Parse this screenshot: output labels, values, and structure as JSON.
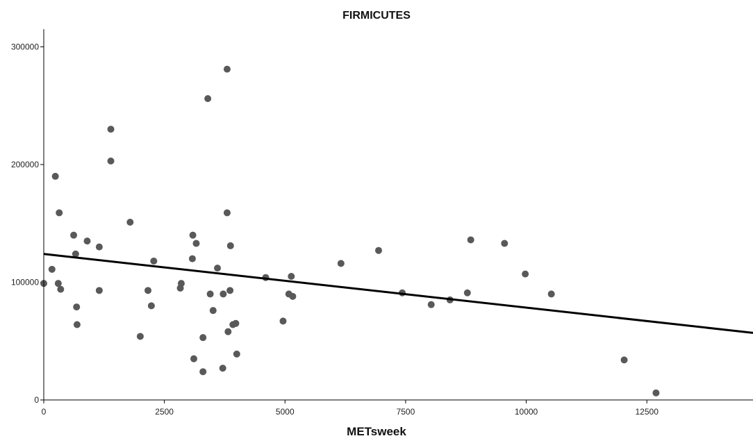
{
  "chart_data": {
    "type": "scatter",
    "title": "FIRMICUTES",
    "xlabel": "METsweek",
    "ylabel": "",
    "xlim": [
      0,
      14700
    ],
    "ylim": [
      0,
      315000
    ],
    "x_ticks": [
      0,
      2500,
      5000,
      7500,
      10000,
      12500
    ],
    "x_tick_labels": [
      "0",
      "2500",
      "5000",
      "7500",
      "10000",
      "12500"
    ],
    "y_ticks": [
      0,
      100000,
      200000,
      300000
    ],
    "y_tick_labels": [
      "0",
      "100000",
      "200000",
      "300000"
    ],
    "grid": false,
    "legend": "none",
    "colors": {
      "points": "#595959",
      "fit_line": "#000000",
      "axes": "#000000"
    },
    "fit_line": {
      "start": [
        0,
        124000
      ],
      "end": [
        14700,
        57000
      ]
    },
    "points": [
      {
        "x": 0,
        "y": 99000
      },
      {
        "x": 170,
        "y": 111000
      },
      {
        "x": 240,
        "y": 190000
      },
      {
        "x": 300,
        "y": 99000
      },
      {
        "x": 320,
        "y": 159000
      },
      {
        "x": 350,
        "y": 94000
      },
      {
        "x": 620,
        "y": 140000
      },
      {
        "x": 660,
        "y": 124000
      },
      {
        "x": 680,
        "y": 79000
      },
      {
        "x": 690,
        "y": 64000
      },
      {
        "x": 900,
        "y": 135000
      },
      {
        "x": 1150,
        "y": 93000
      },
      {
        "x": 1150,
        "y": 130000
      },
      {
        "x": 1390,
        "y": 230000
      },
      {
        "x": 1390,
        "y": 203000
      },
      {
        "x": 1790,
        "y": 151000
      },
      {
        "x": 2000,
        "y": 54000
      },
      {
        "x": 2160,
        "y": 93000
      },
      {
        "x": 2230,
        "y": 80000
      },
      {
        "x": 2280,
        "y": 118000
      },
      {
        "x": 2830,
        "y": 95000
      },
      {
        "x": 2850,
        "y": 99000
      },
      {
        "x": 3080,
        "y": 120000
      },
      {
        "x": 3090,
        "y": 140000
      },
      {
        "x": 3110,
        "y": 35000
      },
      {
        "x": 3160,
        "y": 133000
      },
      {
        "x": 3300,
        "y": 53000
      },
      {
        "x": 3300,
        "y": 24000
      },
      {
        "x": 3400,
        "y": 256000
      },
      {
        "x": 3450,
        "y": 90000
      },
      {
        "x": 3510,
        "y": 76000
      },
      {
        "x": 3600,
        "y": 112000
      },
      {
        "x": 3710,
        "y": 27000
      },
      {
        "x": 3720,
        "y": 90000
      },
      {
        "x": 3800,
        "y": 281000
      },
      {
        "x": 3800,
        "y": 159000
      },
      {
        "x": 3820,
        "y": 58000
      },
      {
        "x": 3860,
        "y": 93000
      },
      {
        "x": 3870,
        "y": 131000
      },
      {
        "x": 3920,
        "y": 64000
      },
      {
        "x": 3980,
        "y": 65000
      },
      {
        "x": 4000,
        "y": 39000
      },
      {
        "x": 4600,
        "y": 104000
      },
      {
        "x": 4960,
        "y": 67000
      },
      {
        "x": 5080,
        "y": 90000
      },
      {
        "x": 5130,
        "y": 105000
      },
      {
        "x": 5160,
        "y": 88000
      },
      {
        "x": 6160,
        "y": 116000
      },
      {
        "x": 6940,
        "y": 127000
      },
      {
        "x": 7430,
        "y": 91000
      },
      {
        "x": 8030,
        "y": 81000
      },
      {
        "x": 8420,
        "y": 85000
      },
      {
        "x": 8780,
        "y": 91000
      },
      {
        "x": 8850,
        "y": 136000
      },
      {
        "x": 9550,
        "y": 133000
      },
      {
        "x": 9980,
        "y": 107000
      },
      {
        "x": 10520,
        "y": 90000
      },
      {
        "x": 12030,
        "y": 34000
      },
      {
        "x": 12690,
        "y": 6000
      }
    ]
  }
}
